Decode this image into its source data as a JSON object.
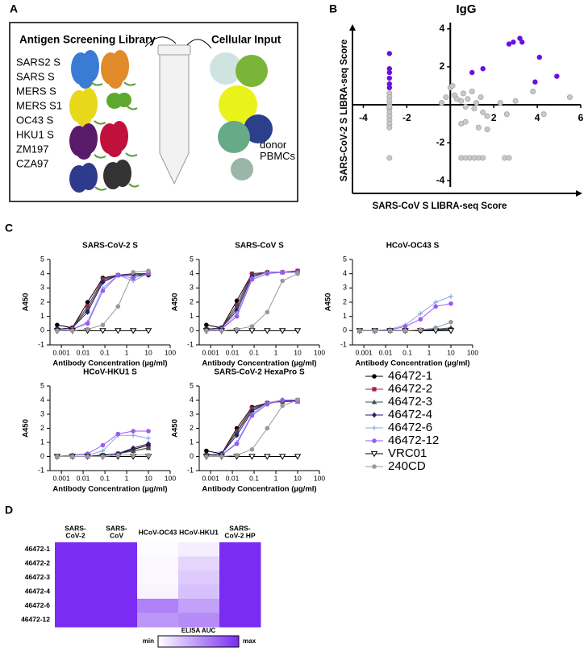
{
  "panel_labels": [
    "A",
    "B",
    "C",
    "D"
  ],
  "diagram": {
    "library_title": "Antigen Screening Library",
    "cellular_title": "Cellular Input",
    "antigens": [
      "SARS2 S",
      "SARS S",
      "MERS S",
      "MERS S1",
      "OC43 S",
      "HKU1 S",
      "ZM197",
      "CZA97"
    ],
    "cells_label": "donor\nPBMCs"
  },
  "chart_data": [
    {
      "type": "scatter",
      "title": "IgG",
      "xlabel": "SARS-CoV S LIBRA-seq Score",
      "ylabel": "SARS-CoV-2 S LIBRA-seq Score",
      "xlim": [
        -4.5,
        6
      ],
      "ylim": [
        -4.5,
        4.5
      ],
      "xticks": [
        -4,
        -2,
        2,
        4,
        6
      ],
      "yticks": [
        4,
        2,
        -2,
        -4
      ],
      "series": [
        {
          "color": "#6a10e0",
          "x": [
            -2.8,
            -2.8,
            -2.8,
            -2.8,
            -2.8,
            -2.8,
            1.0,
            1.5,
            2.7,
            2.9,
            3.2,
            3.3,
            4.1,
            3.9,
            4.9
          ],
          "values": [
            2.7,
            1.9,
            1.7,
            1.4,
            1.1,
            0.9,
            1.7,
            1.9,
            3.2,
            3.3,
            3.5,
            3.3,
            2.5,
            1.2,
            1.5
          ]
        },
        {
          "color": "#c8c8c8",
          "x": [
            -2.8,
            -2.8,
            -2.8,
            -2.8,
            -2.8,
            -2.8,
            -2.8,
            -2.8,
            -2.8,
            -2.8,
            -2.8,
            -2.8,
            -0.4,
            -0.2,
            0.0,
            0.1,
            0.2,
            0.3,
            0.5,
            0.6,
            0.7,
            0.8,
            1.0,
            1.1,
            1.2,
            1.4,
            1.5,
            1.7,
            2.3,
            2.6,
            3.0,
            3.8,
            4.3,
            5.5,
            0.5,
            0.7,
            1.3,
            1.7,
            0.5,
            0.7,
            0.9,
            1.1,
            1.3,
            1.5,
            2.5,
            2.7
          ],
          "values": [
            0.6,
            0.4,
            0.2,
            0.0,
            -0.2,
            -0.4,
            -0.6,
            -0.8,
            -1.0,
            -1.2,
            -0.1,
            -2.8,
            0.1,
            0.4,
            0.9,
            1.0,
            0.5,
            0.3,
            0.2,
            0.6,
            -0.1,
            0.3,
            0.7,
            -0.2,
            0.1,
            0.4,
            -0.4,
            -0.6,
            0.1,
            -0.5,
            0.2,
            0.7,
            -0.5,
            0.4,
            -1.0,
            -0.9,
            -1.2,
            -1.3,
            -2.8,
            -2.8,
            -2.8,
            -2.8,
            -2.8,
            -2.8,
            -2.8,
            -2.8
          ]
        }
      ]
    },
    {
      "type": "line",
      "title": "SARS-CoV-2 S",
      "xlabel": "Antibody Concentration (µg/ml)",
      "ylabel": "A450",
      "log_x": true,
      "x": [
        0.00064,
        0.0032,
        0.016,
        0.08,
        0.4,
        2,
        10
      ],
      "xlim": [
        0.0003,
        100
      ],
      "xticks": [
        0.001,
        0.01,
        0.1,
        1,
        10,
        100
      ],
      "ylim": [
        -1,
        5
      ],
      "yticks": [
        -1,
        0,
        1,
        2,
        3,
        4,
        5
      ],
      "series": [
        {
          "name": "46472-1",
          "color": "#000000",
          "marker": "circle",
          "values": [
            0.4,
            0.2,
            2.0,
            3.7,
            3.9,
            3.9,
            3.9
          ]
        },
        {
          "name": "46472-2",
          "color": "#a0224e",
          "marker": "square",
          "values": [
            0.1,
            0.2,
            1.7,
            3.6,
            3.9,
            3.9,
            4.0
          ]
        },
        {
          "name": "46472-3",
          "color": "#2f5a4e",
          "marker": "triangle",
          "values": [
            0.1,
            0.2,
            1.5,
            3.5,
            3.9,
            3.9,
            4.0
          ]
        },
        {
          "name": "46472-4",
          "color": "#2a1a6e",
          "marker": "diamond",
          "values": [
            0.1,
            0.2,
            1.3,
            3.4,
            3.9,
            4.0,
            4.0
          ]
        },
        {
          "name": "46472-6",
          "color": "#8aa8e6",
          "marker": "plus",
          "values": [
            0,
            0.1,
            0.6,
            3.0,
            3.9,
            3.5,
            4.0
          ]
        },
        {
          "name": "46472-12",
          "color": "#9b59f5",
          "marker": "circle",
          "values": [
            0,
            0.1,
            0.5,
            2.8,
            3.9,
            3.7,
            4.0
          ]
        },
        {
          "name": "VRC01",
          "color": "#000000",
          "marker": "triangle-open",
          "values": [
            0,
            0,
            0,
            0,
            0,
            0,
            0
          ]
        },
        {
          "name": "240CD",
          "color": "#999999",
          "marker": "circle",
          "values": [
            0,
            0,
            0.1,
            0.4,
            1.7,
            4.1,
            4.2
          ]
        }
      ]
    },
    {
      "type": "line",
      "title": "SARS-CoV S",
      "xlabel": "Antibody Concentration (µg/ml)",
      "ylabel": "A450",
      "log_x": true,
      "x": [
        0.00064,
        0.0032,
        0.016,
        0.08,
        0.4,
        2,
        10
      ],
      "xlim": [
        0.0003,
        100
      ],
      "xticks": [
        0.001,
        0.01,
        0.1,
        1,
        10,
        100
      ],
      "ylim": [
        -1,
        5
      ],
      "yticks": [
        -1,
        0,
        1,
        2,
        3,
        4,
        5
      ],
      "series": [
        {
          "name": "46472-1",
          "color": "#000000",
          "marker": "circle",
          "values": [
            0.4,
            0.2,
            2.1,
            4.0,
            4.1,
            4.1,
            4.2
          ]
        },
        {
          "name": "46472-2",
          "color": "#a0224e",
          "marker": "square",
          "values": [
            0.1,
            0.2,
            1.8,
            4.0,
            4.1,
            4.1,
            4.2
          ]
        },
        {
          "name": "46472-3",
          "color": "#2f5a4e",
          "marker": "triangle",
          "values": [
            0.1,
            0.2,
            1.6,
            3.9,
            4.1,
            4.1,
            4.1
          ]
        },
        {
          "name": "46472-4",
          "color": "#2a1a6e",
          "marker": "diamond",
          "values": [
            0.1,
            0.2,
            1.4,
            3.8,
            4.1,
            4.1,
            4.1
          ]
        },
        {
          "name": "46472-6",
          "color": "#8aa8e6",
          "marker": "plus",
          "values": [
            0,
            0.1,
            1.2,
            3.7,
            4.1,
            4.1,
            4.1
          ]
        },
        {
          "name": "46472-12",
          "color": "#9b59f5",
          "marker": "circle",
          "values": [
            0,
            0.1,
            1.0,
            3.6,
            4.0,
            4.1,
            4.1
          ]
        },
        {
          "name": "VRC01",
          "color": "#000000",
          "marker": "triangle-open",
          "values": [
            0,
            0,
            0,
            0,
            0,
            0,
            0
          ]
        },
        {
          "name": "240CD",
          "color": "#999999",
          "marker": "circle",
          "values": [
            0,
            0,
            0.1,
            0.3,
            1.3,
            3.5,
            4.0
          ]
        }
      ]
    },
    {
      "type": "line",
      "title": "HCoV-OC43 S",
      "xlabel": "Antibody Concentration (µg/ml)",
      "ylabel": "A450",
      "log_x": true,
      "x": [
        0.00064,
        0.0032,
        0.016,
        0.08,
        0.4,
        2,
        10
      ],
      "xlim": [
        0.0003,
        100
      ],
      "xticks": [
        0.001,
        0.01,
        0.1,
        1,
        10,
        100
      ],
      "ylim": [
        -1,
        5
      ],
      "yticks": [
        -1,
        0,
        1,
        2,
        3,
        4,
        5
      ],
      "series": [
        {
          "name": "46472-1",
          "color": "#000000",
          "marker": "circle",
          "values": [
            0,
            0,
            0,
            0,
            0,
            0.1,
            0.1
          ]
        },
        {
          "name": "46472-2",
          "color": "#a0224e",
          "marker": "square",
          "values": [
            0,
            0,
            0,
            0,
            0.05,
            0.1,
            0.1
          ]
        },
        {
          "name": "46472-3",
          "color": "#2f5a4e",
          "marker": "triangle",
          "values": [
            0,
            0,
            0,
            0,
            0.05,
            0.1,
            0.2
          ]
        },
        {
          "name": "46472-4",
          "color": "#2a1a6e",
          "marker": "diamond",
          "values": [
            0,
            0,
            0,
            0,
            0,
            0.05,
            0.1
          ]
        },
        {
          "name": "46472-6",
          "color": "#8aa8e6",
          "marker": "plus",
          "values": [
            0,
            0,
            0.1,
            0.4,
            1.2,
            2.0,
            2.4
          ]
        },
        {
          "name": "46472-12",
          "color": "#9b59f5",
          "marker": "circle",
          "values": [
            0,
            0,
            0.05,
            0.3,
            0.8,
            1.7,
            1.9
          ]
        },
        {
          "name": "VRC01",
          "color": "#000000",
          "marker": "triangle-open",
          "values": [
            0,
            0,
            0,
            0,
            0,
            0,
            0
          ]
        },
        {
          "name": "240CD",
          "color": "#999999",
          "marker": "circle",
          "values": [
            0,
            0,
            0,
            0,
            0.05,
            0.2,
            0.6
          ]
        }
      ]
    },
    {
      "type": "line",
      "title": "HCoV-HKU1 S",
      "xlabel": "Antibody Concentration (µg/ml)",
      "ylabel": "A450",
      "log_x": true,
      "x": [
        0.00064,
        0.0032,
        0.016,
        0.08,
        0.4,
        2,
        10
      ],
      "xlim": [
        0.0003,
        100
      ],
      "xticks": [
        0.001,
        0.01,
        0.1,
        1,
        10,
        100
      ],
      "ylim": [
        -1,
        5
      ],
      "yticks": [
        -1,
        0,
        1,
        2,
        3,
        4,
        5
      ],
      "series": [
        {
          "name": "46472-1",
          "color": "#000000",
          "marker": "circle",
          "values": [
            0,
            0,
            0,
            0.1,
            0.2,
            0.5,
            0.8
          ]
        },
        {
          "name": "46472-2",
          "color": "#a0224e",
          "marker": "square",
          "values": [
            0,
            0,
            0,
            0.1,
            0.2,
            0.4,
            0.6
          ]
        },
        {
          "name": "46472-3",
          "color": "#2f5a4e",
          "marker": "triangle",
          "values": [
            0,
            0,
            0,
            0.1,
            0.2,
            0.4,
            0.6
          ]
        },
        {
          "name": "46472-4",
          "color": "#2a1a6e",
          "marker": "diamond",
          "values": [
            0,
            0,
            0,
            0.1,
            0.2,
            0.6,
            0.9
          ]
        },
        {
          "name": "46472-6",
          "color": "#8aa8e6",
          "marker": "plus",
          "values": [
            0,
            0.1,
            0.1,
            0.4,
            1.5,
            1.5,
            1.3
          ]
        },
        {
          "name": "46472-12",
          "color": "#9b59f5",
          "marker": "circle",
          "values": [
            0,
            0.1,
            0.2,
            0.8,
            1.6,
            1.8,
            1.8
          ]
        },
        {
          "name": "VRC01",
          "color": "#000000",
          "marker": "triangle-open",
          "values": [
            0,
            0,
            0,
            0,
            0,
            0,
            0
          ]
        },
        {
          "name": "240CD",
          "color": "#999999",
          "marker": "circle",
          "values": [
            0,
            0,
            0,
            0,
            0.1,
            0.1,
            0.1
          ]
        }
      ]
    },
    {
      "type": "line",
      "title": "SARS-CoV-2 HexaPro S",
      "xlabel": "Antibody Concentration (µg/ml)",
      "ylabel": "A450",
      "log_x": true,
      "x": [
        0.00064,
        0.0032,
        0.016,
        0.08,
        0.4,
        2,
        10
      ],
      "xlim": [
        0.0003,
        100
      ],
      "xticks": [
        0.001,
        0.01,
        0.1,
        1,
        10,
        100
      ],
      "ylim": [
        -1,
        5
      ],
      "yticks": [
        -1,
        0,
        1,
        2,
        3,
        4,
        5
      ],
      "series": [
        {
          "name": "46472-1",
          "color": "#000000",
          "marker": "circle",
          "values": [
            0.4,
            0.2,
            2.0,
            3.5,
            3.8,
            3.9,
            3.9
          ]
        },
        {
          "name": "46472-2",
          "color": "#a0224e",
          "marker": "square",
          "values": [
            0.1,
            0.2,
            1.8,
            3.4,
            3.8,
            3.9,
            4.0
          ]
        },
        {
          "name": "46472-3",
          "color": "#2f5a4e",
          "marker": "triangle",
          "values": [
            0.1,
            0.2,
            1.7,
            3.3,
            3.8,
            3.9,
            3.9
          ]
        },
        {
          "name": "46472-4",
          "color": "#2a1a6e",
          "marker": "diamond",
          "values": [
            0.1,
            0.2,
            1.5,
            3.2,
            3.8,
            4.0,
            4.0
          ]
        },
        {
          "name": "46472-6",
          "color": "#8aa8e6",
          "marker": "plus",
          "values": [
            0,
            0.1,
            1.0,
            3.0,
            3.8,
            4.0,
            3.9
          ]
        },
        {
          "name": "46472-12",
          "color": "#9b59f5",
          "marker": "circle",
          "values": [
            0,
            0.1,
            0.9,
            2.9,
            3.7,
            4.0,
            3.9
          ]
        },
        {
          "name": "VRC01",
          "color": "#000000",
          "marker": "triangle-open",
          "values": [
            0,
            0,
            0,
            0,
            0,
            0,
            0
          ]
        },
        {
          "name": "240CD",
          "color": "#999999",
          "marker": "circle",
          "values": [
            0,
            0,
            0.1,
            0.5,
            2.0,
            3.6,
            4.0
          ]
        }
      ]
    },
    {
      "type": "heatmap",
      "columns": [
        "SARS-\nCoV-2",
        "SARS-\nCoV",
        "HCoV-OC43",
        "HCoV-HKU1",
        "SARS-\nCoV-2 HP"
      ],
      "rows": [
        "46472-1",
        "46472-2",
        "46472-3",
        "46472-4",
        "46472-6",
        "46472-12"
      ],
      "values": [
        [
          1,
          1,
          0.02,
          0.08,
          1
        ],
        [
          1,
          1,
          0.03,
          0.2,
          1
        ],
        [
          1,
          1,
          0.04,
          0.25,
          1
        ],
        [
          1,
          1,
          0.05,
          0.3,
          1
        ],
        [
          1,
          1,
          0.6,
          0.45,
          1
        ],
        [
          1,
          1,
          0.5,
          0.55,
          1
        ]
      ],
      "zlim": [
        0,
        1
      ],
      "colors": [
        "#ffffff",
        "#7a2cf2"
      ],
      "colorbar_title": "ELISA AUC",
      "colorbar_min_label": "min",
      "colorbar_max_label": "max"
    }
  ]
}
